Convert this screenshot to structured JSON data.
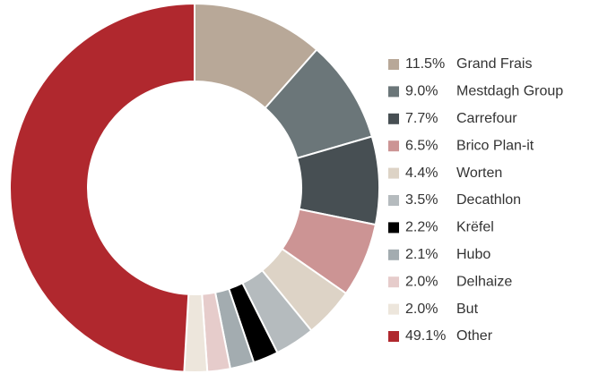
{
  "chart_data": {
    "type": "donut",
    "categories": [
      "Grand Frais",
      "Mestdagh Group",
      "Carrefour",
      "Brico Plan-it",
      "Worten",
      "Decathlon",
      "Krëfel",
      "Hubo",
      "Delhaize",
      "But",
      "Other"
    ],
    "values": [
      11.5,
      9.0,
      7.7,
      6.5,
      4.4,
      3.5,
      2.2,
      2.1,
      2.0,
      2.0,
      49.1
    ],
    "value_labels": [
      "11.5%",
      "9.0%",
      "7.7%",
      "6.5%",
      "4.4%",
      "3.5%",
      "2.2%",
      "2.1%",
      "2.0%",
      "2.0%",
      "49.1%"
    ],
    "colors": [
      "#b8a898",
      "#6b7679",
      "#474f53",
      "#cc9494",
      "#ddd3c6",
      "#b5bbbe",
      "#000000",
      "#a3acb0",
      "#e6cccb",
      "#ede6dc",
      "#b0282e"
    ],
    "legend": "right"
  }
}
